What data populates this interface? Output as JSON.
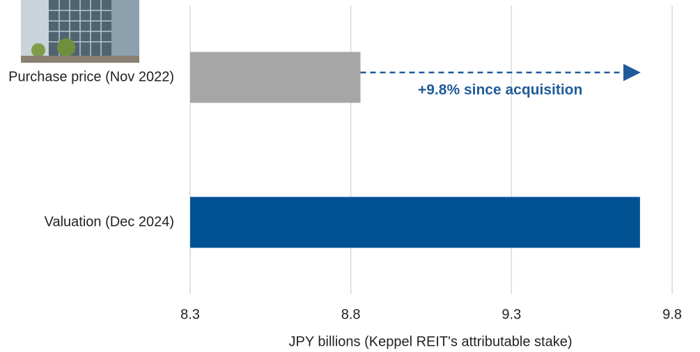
{
  "chart_data": {
    "type": "bar",
    "orientation": "horizontal",
    "categories": [
      "Purchase price (Nov 2022)",
      "Valuation (Dec 2024)"
    ],
    "values": [
      8.83,
      9.7
    ],
    "colors": [
      "#a6a6a6",
      "#005293"
    ],
    "xlim": [
      8.3,
      9.8
    ],
    "xticks": [
      8.3,
      8.8,
      9.3,
      9.8
    ],
    "xlabel": "JPY billions (Keppel REIT's attributable stake)",
    "annotation": "+9.8% since acquisition",
    "grid": true
  }
}
